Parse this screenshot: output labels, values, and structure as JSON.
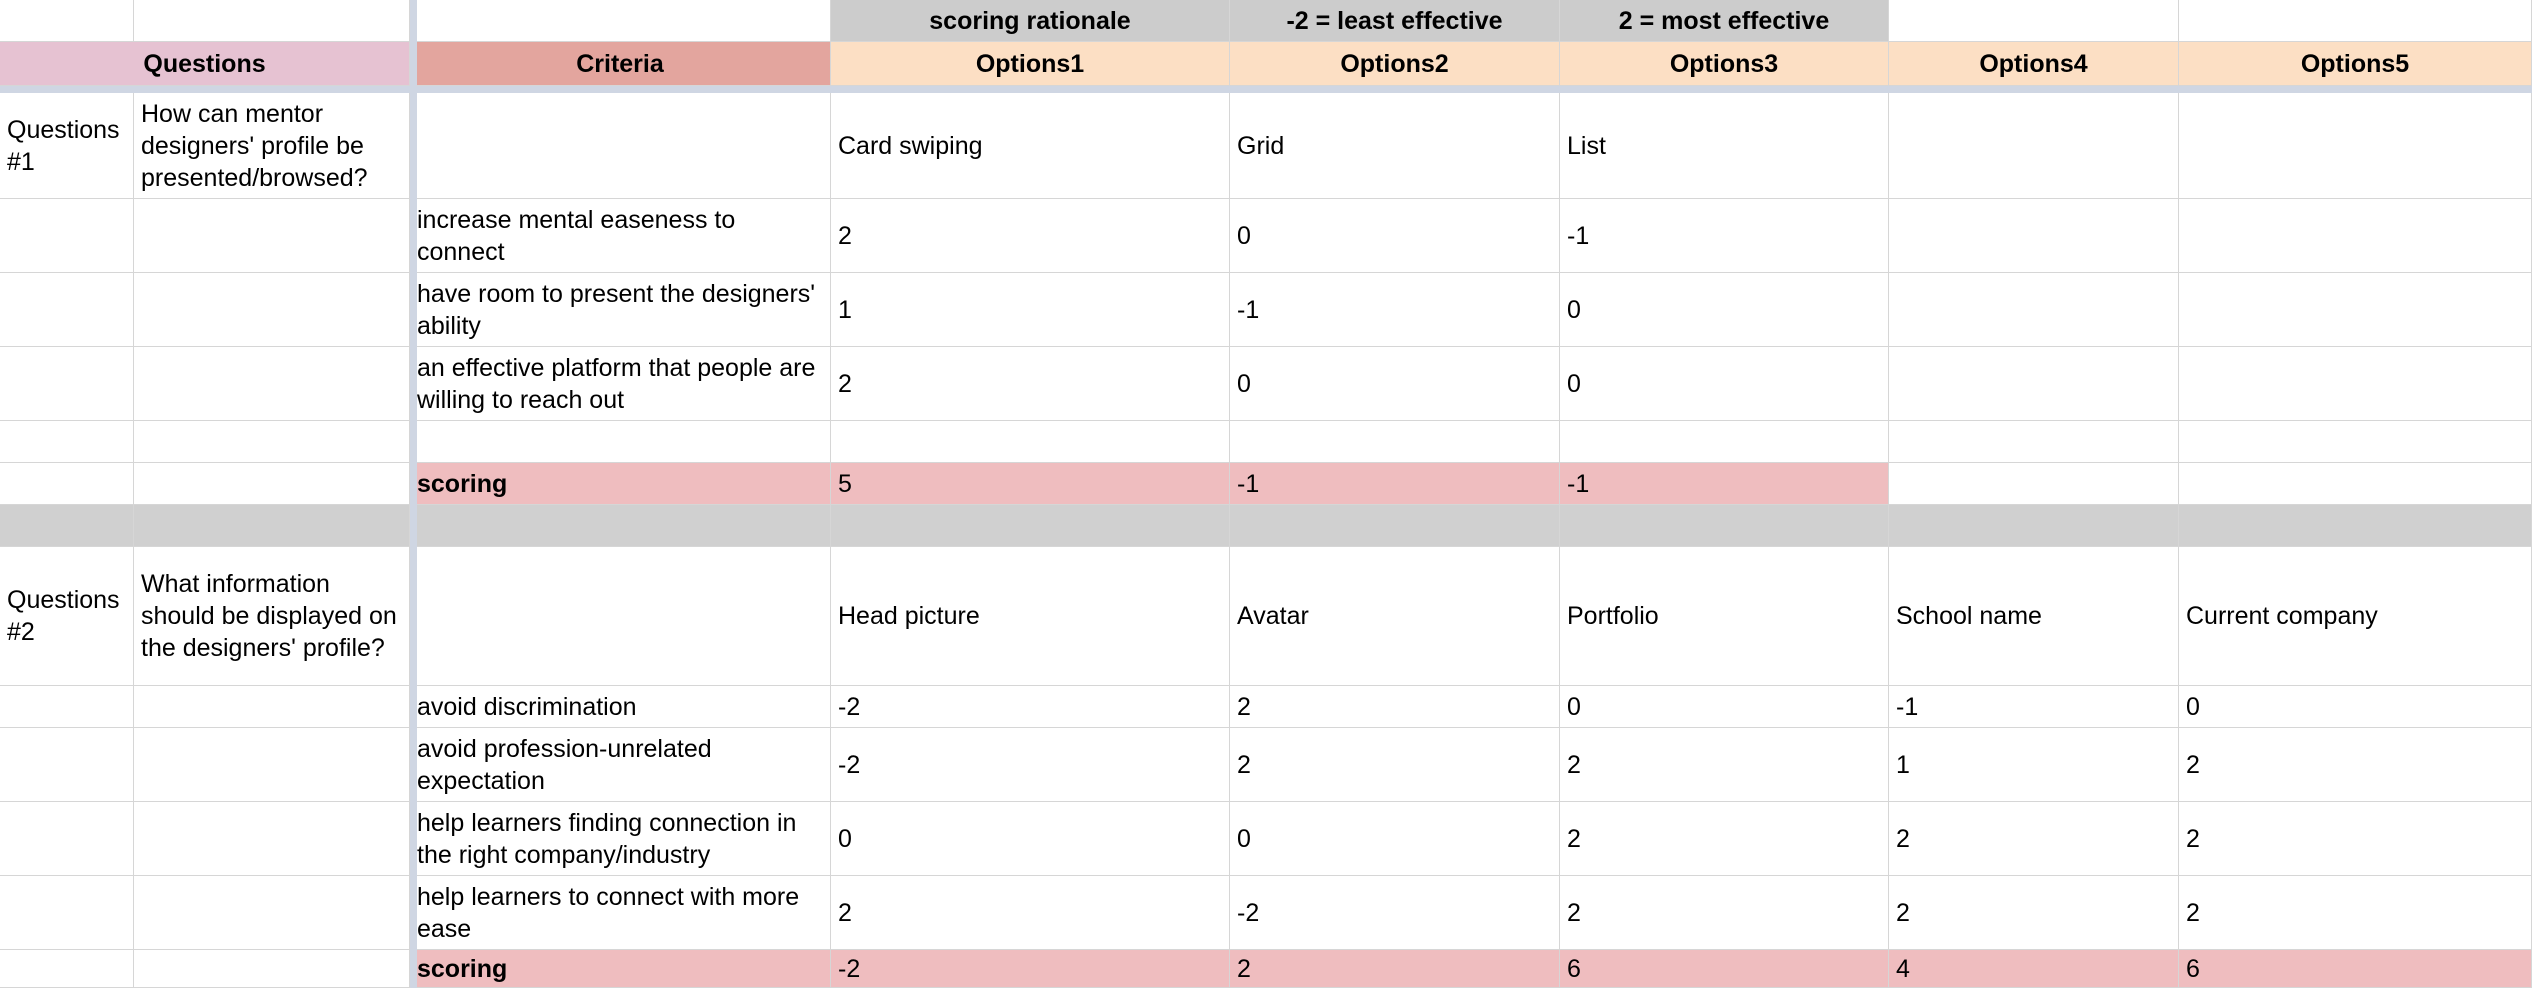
{
  "header_top": {
    "scoring_rationale": "scoring rationale",
    "least_effective": "-2 = least effective",
    "most_effective": "2 = most effective"
  },
  "headers": {
    "questions": "Questions",
    "criteria": "Criteria",
    "options": [
      "Options1",
      "Options2",
      "Options3",
      "Options4",
      "Options5"
    ]
  },
  "q1": {
    "id": "Questions #1",
    "text": "How can mentor designers' profile be presented/browsed?",
    "options": [
      "Card swiping",
      "Grid",
      "List",
      "",
      ""
    ],
    "rows": [
      {
        "criteria": "increase mental easeness to connect",
        "scores": [
          "2",
          "0",
          "-1",
          "",
          ""
        ]
      },
      {
        "criteria": "have room to present the designers' ability",
        "scores": [
          "1",
          "-1",
          "0",
          "",
          ""
        ]
      },
      {
        "criteria": "an effective platform that people are willing to reach out",
        "scores": [
          "2",
          "0",
          "0",
          "",
          ""
        ]
      },
      {
        "criteria": "",
        "scores": [
          "",
          "",
          "",
          "",
          ""
        ]
      }
    ],
    "scoring_label": "scoring",
    "scoring": [
      "5",
      "-1",
      "-1",
      "",
      ""
    ]
  },
  "q2": {
    "id": "Questions #2",
    "text": "What information should be displayed on the designers' profile?",
    "options": [
      "Head picture",
      "Avatar",
      "Portfolio",
      "School name",
      "Current company"
    ],
    "rows": [
      {
        "criteria": "avoid discrimination",
        "scores": [
          "-2",
          "2",
          "0",
          "-1",
          "0"
        ]
      },
      {
        "criteria": "avoid profession-unrelated expectation",
        "scores": [
          "-2",
          "2",
          "2",
          "1",
          "2"
        ]
      },
      {
        "criteria": "help learners finding connection in the right company/industry",
        "scores": [
          "0",
          "0",
          "2",
          "2",
          "2"
        ]
      },
      {
        "criteria": "help learners to connect with more ease",
        "scores": [
          "2",
          "-2",
          "2",
          "2",
          "2"
        ]
      }
    ],
    "scoring_label": "scoring",
    "scoring": [
      "-2",
      "2",
      "6",
      "4",
      "6"
    ]
  },
  "colors": {
    "header_gray": "#cccccc",
    "questions_header": "#e6c2d2",
    "criteria_header": "#e3a59e",
    "options_header": "#fcdfc4",
    "scoring_row": "#efbdbf",
    "separator_row": "#d0d0d0",
    "freeze_line": "#cfd6e3"
  }
}
